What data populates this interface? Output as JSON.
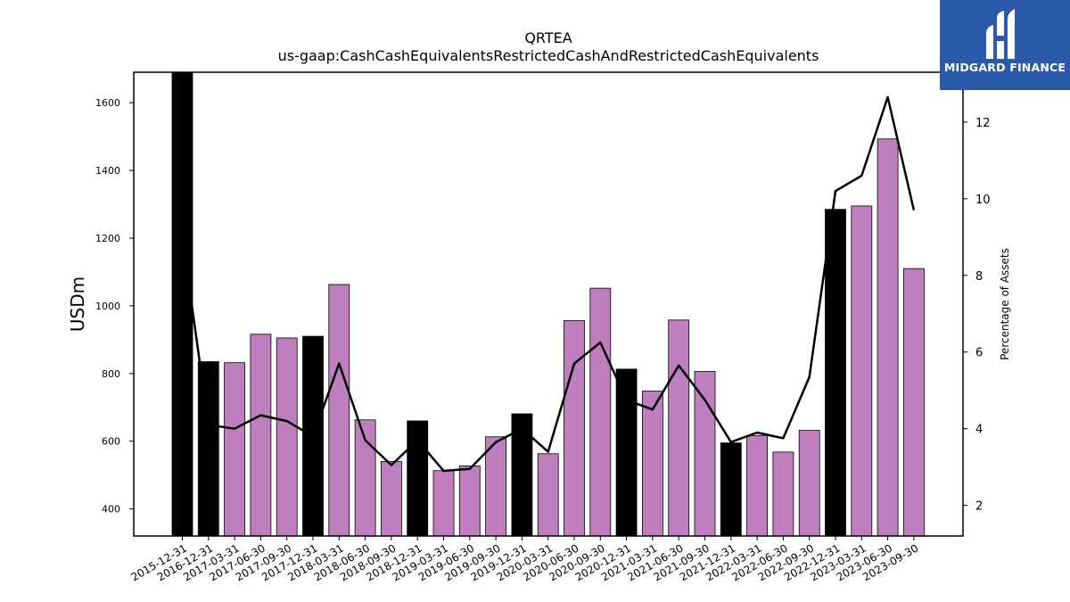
{
  "chart_data": {
    "type": "bar",
    "title": "QRTEA",
    "subtitle": "us-gaap:CashCashEquivalentsRestrictedCashAndRestrictedCashEquivalents",
    "ylabel": "USDm",
    "y2label": "Percentage of Assets",
    "ylim": [
      320,
      1690
    ],
    "y2lim": [
      1.2,
      13.3
    ],
    "yticks": [
      400,
      600,
      800,
      1000,
      1200,
      1400,
      1600
    ],
    "y2ticks": [
      2,
      4,
      6,
      8,
      10,
      12
    ],
    "categories": [
      "2015-12-31",
      "2016-12-31",
      "2017-03-31",
      "2017-06-30",
      "2017-09-30",
      "2017-12-31",
      "2018-03-31",
      "2018-06-30",
      "2018-09-30",
      "2018-12-31",
      "2019-03-31",
      "2019-06-30",
      "2019-09-30",
      "2019-12-31",
      "2020-03-31",
      "2020-06-30",
      "2020-09-30",
      "2020-12-31",
      "2021-03-31",
      "2021-06-30",
      "2021-09-30",
      "2021-12-31",
      "2022-03-31",
      "2022-06-30",
      "2022-09-30",
      "2022-12-31",
      "2023-03-31",
      "2023-06-30",
      "2023-09-30"
    ],
    "series": [
      {
        "type": "bar",
        "values": [
          1690,
          835,
          832,
          916,
          905,
          910,
          1063,
          663,
          540,
          660,
          513,
          527,
          613,
          681,
          563,
          956,
          1052,
          813,
          748,
          958,
          806,
          595,
          617,
          568,
          632,
          1285,
          1295,
          1493,
          1110
        ],
        "annual": [
          true,
          true,
          false,
          false,
          false,
          true,
          false,
          false,
          false,
          true,
          false,
          false,
          false,
          true,
          false,
          false,
          false,
          true,
          false,
          false,
          false,
          true,
          false,
          false,
          false,
          true,
          false,
          false,
          false
        ]
      },
      {
        "type": "line",
        "axis": "right",
        "values": [
          9.0,
          4.1,
          4.0,
          4.35,
          4.2,
          3.8,
          5.7,
          3.7,
          3.05,
          3.7,
          2.9,
          2.95,
          3.65,
          4.0,
          3.4,
          5.7,
          6.25,
          4.75,
          4.5,
          5.65,
          4.75,
          3.65,
          3.9,
          3.75,
          5.35,
          10.2,
          10.6,
          12.65,
          9.7
        ]
      }
    ],
    "colors": {
      "annual": "#000000",
      "quarterly": "#bf7fbf",
      "line": "#000000"
    }
  },
  "logo": {
    "text": "MIDGARD FINANCE",
    "color": "#2b5aa8"
  }
}
